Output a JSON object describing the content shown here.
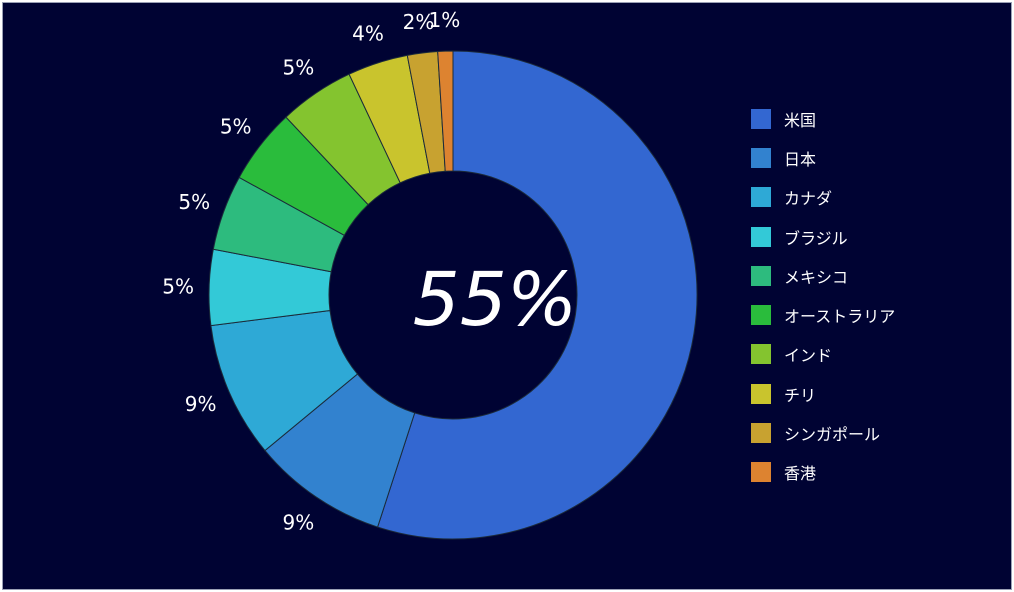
{
  "chart_data": {
    "type": "pie",
    "variant": "donut",
    "categories": [
      "米国",
      "日本",
      "カナダ",
      "ブラジル",
      "メキシコ",
      "オーストラリア",
      "インド",
      "チリ",
      "シンガポール",
      "香港"
    ],
    "values": [
      55,
      9,
      9,
      5,
      5,
      5,
      5,
      4,
      2,
      1
    ],
    "labels": [
      "55%",
      "9%",
      "9%",
      "5%",
      "5%",
      "5%",
      "5%",
      "4%",
      "2%",
      "1%"
    ],
    "colors": [
      "#3367d1",
      "#3282cf",
      "#2ea9d6",
      "#33c9d7",
      "#2dbb7e",
      "#2abc3c",
      "#84c42f",
      "#c9c42d",
      "#c8a230",
      "#dd8330"
    ],
    "center_label": "55%",
    "title": "",
    "legend_position": "right",
    "background": "#000333"
  }
}
